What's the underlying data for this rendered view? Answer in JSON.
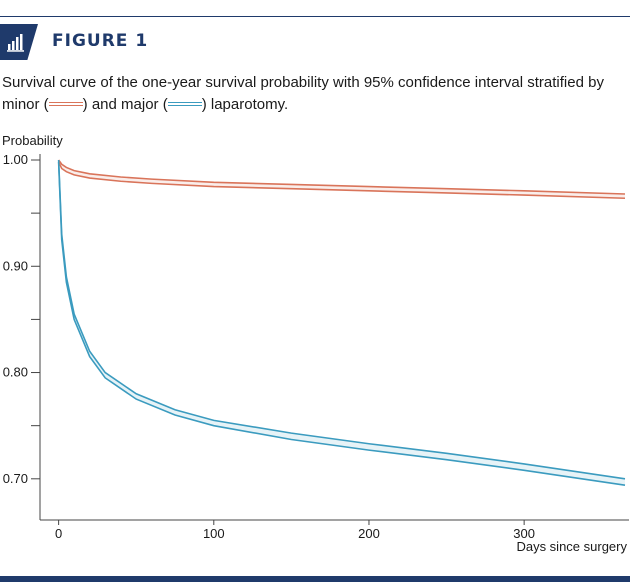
{
  "figure": {
    "label": "FIGURE 1",
    "icon": "bar-chart-icon",
    "caption_before_minor": "Survival curve of the one-year survival probability with 95% confidence interval stratified by minor (",
    "caption_between": ") and major (",
    "caption_after": ") laparotomy."
  },
  "chart_data": {
    "type": "line",
    "ylabel": "Probability",
    "xlabel": "Days since surgery",
    "xlim": [
      -12,
      365
    ],
    "ylim": [
      0.665,
      1.0
    ],
    "xticks": [
      0,
      100,
      200,
      300
    ],
    "xtick_labels": [
      "0",
      "100",
      "200",
      "300"
    ],
    "yticks": [
      0.7,
      0.8,
      0.9,
      1.0
    ],
    "ytick_labels": [
      "0.70",
      "0.80",
      "0.90",
      "1.00"
    ],
    "y_minor_ticks": [
      0.75,
      0.85,
      0.95
    ],
    "grid": false,
    "colors": {
      "minor": "#d9745a",
      "major": "#3b9bbf"
    },
    "series": [
      {
        "name": "minor",
        "color": "#d9745a",
        "x": [
          0,
          2,
          5,
          10,
          20,
          40,
          60,
          100,
          150,
          200,
          250,
          300,
          365
        ],
        "upper": [
          1.0,
          0.996,
          0.993,
          0.99,
          0.987,
          0.984,
          0.982,
          0.979,
          0.977,
          0.975,
          0.973,
          0.971,
          0.968
        ],
        "lower": [
          0.998,
          0.992,
          0.989,
          0.986,
          0.983,
          0.98,
          0.978,
          0.975,
          0.973,
          0.971,
          0.969,
          0.967,
          0.964
        ]
      },
      {
        "name": "major",
        "color": "#3b9bbf",
        "x": [
          0,
          2,
          5,
          10,
          20,
          30,
          50,
          75,
          100,
          150,
          200,
          250,
          300,
          365
        ],
        "upper": [
          1.0,
          0.93,
          0.89,
          0.855,
          0.82,
          0.8,
          0.78,
          0.765,
          0.755,
          0.743,
          0.733,
          0.724,
          0.714,
          0.7
        ],
        "lower": [
          0.998,
          0.925,
          0.885,
          0.85,
          0.815,
          0.795,
          0.775,
          0.76,
          0.75,
          0.737,
          0.727,
          0.718,
          0.708,
          0.694
        ]
      }
    ]
  }
}
